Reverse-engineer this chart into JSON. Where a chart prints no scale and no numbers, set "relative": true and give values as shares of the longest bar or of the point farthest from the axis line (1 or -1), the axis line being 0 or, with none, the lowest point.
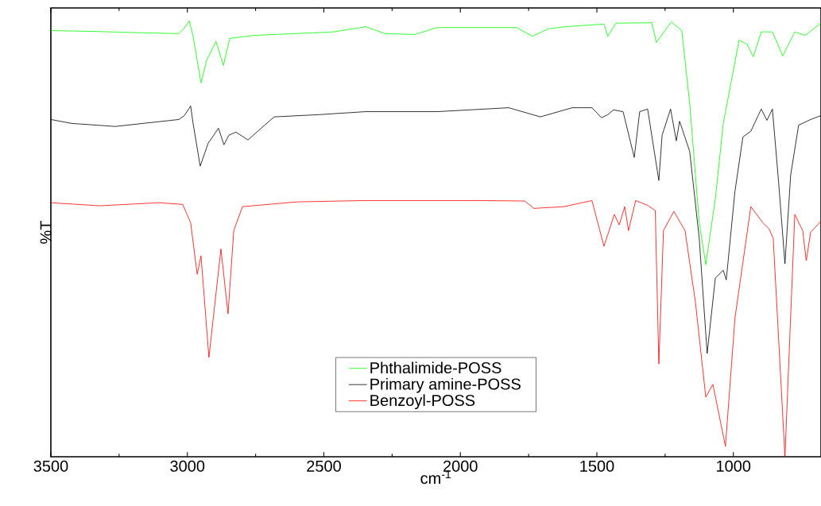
{
  "chart_data": {
    "type": "line",
    "relative": true,
    "xlabel": "cm$^{-1}$",
    "ylabel": "%T",
    "xlim": [
      3500,
      679
    ],
    "xticks": [
      3500,
      3000,
      2500,
      2000,
      1500,
      1000
    ],
    "legend": "bottom",
    "grid": false,
    "marker": "none",
    "line_style": "solid",
    "series": [
      {
        "name": "Phthalimide-POSS",
        "color": "#00ff00",
        "x": [
          3500,
          3337,
          3162,
          3031,
          3011,
          2993,
          2979,
          2950,
          2929,
          2895,
          2868,
          2845,
          2755,
          2464,
          2347,
          2275,
          2167,
          2085,
          1794,
          1736,
          1678,
          1614,
          1474,
          1460,
          1430,
          1299,
          1282,
          1227,
          1189,
          1160,
          1125,
          1101,
          1066,
          1037,
          979,
          950,
          927,
          898,
          857,
          819,
          775,
          737,
          679
        ],
        "values": [
          0.978,
          0.976,
          0.973,
          0.971,
          0.984,
          1.0,
          0.965,
          0.858,
          0.911,
          0.953,
          0.898,
          0.96,
          0.967,
          0.975,
          0.987,
          0.971,
          0.969,
          0.985,
          0.985,
          0.965,
          0.982,
          0.987,
          0.993,
          0.965,
          0.995,
          0.996,
          0.951,
          0.998,
          0.978,
          0.811,
          0.537,
          0.441,
          0.592,
          0.765,
          0.956,
          0.947,
          0.918,
          0.975,
          0.975,
          0.92,
          0.975,
          0.967,
          0.995
        ]
      },
      {
        "name": "Primary amine-POSS",
        "color": "#000000",
        "x": [
          3500,
          3424,
          3264,
          3104,
          3031,
          3011,
          2988,
          2979,
          2953,
          2924,
          2886,
          2866,
          2848,
          2822,
          2778,
          2726,
          2682,
          2522,
          2347,
          2085,
          1823,
          1707,
          1590,
          1518,
          1483,
          1460,
          1439,
          1404,
          1363,
          1343,
          1314,
          1273,
          1261,
          1230,
          1209,
          1197,
          1160,
          1125,
          1096,
          1066,
          1037,
          1026,
          994,
          965,
          936,
          898,
          877,
          857,
          834,
          811,
          790,
          761,
          717,
          679
        ],
        "values": [
          0.774,
          0.765,
          0.758,
          0.769,
          0.774,
          0.783,
          0.805,
          0.765,
          0.667,
          0.719,
          0.754,
          0.716,
          0.738,
          0.745,
          0.727,
          0.756,
          0.78,
          0.785,
          0.792,
          0.792,
          0.801,
          0.78,
          0.801,
          0.801,
          0.778,
          0.785,
          0.796,
          0.792,
          0.687,
          0.792,
          0.798,
          0.634,
          0.738,
          0.798,
          0.725,
          0.77,
          0.701,
          0.501,
          0.237,
          0.41,
          0.428,
          0.406,
          0.61,
          0.734,
          0.747,
          0.798,
          0.772,
          0.798,
          0.628,
          0.443,
          0.647,
          0.761,
          0.774,
          0.783
        ]
      },
      {
        "name": "Benzoyl-POSS",
        "color": "#ff0000",
        "x": [
          3500,
          3322,
          3104,
          3017,
          2988,
          2964,
          2950,
          2921,
          2877,
          2851,
          2830,
          2798,
          2595,
          2347,
          1940,
          1765,
          1730,
          1620,
          1518,
          1474,
          1436,
          1418,
          1398,
          1384,
          1358,
          1314,
          1286,
          1273,
          1256,
          1218,
          1177,
          1139,
          1101,
          1075,
          1029,
          994,
          936,
          892,
          869,
          854,
          811,
          775,
          746,
          733,
          717,
          679
        ],
        "values": [
          0.583,
          0.576,
          0.583,
          0.579,
          0.537,
          0.419,
          0.461,
          0.228,
          0.477,
          0.328,
          0.519,
          0.574,
          0.585,
          0.588,
          0.588,
          0.587,
          0.57,
          0.574,
          0.588,
          0.483,
          0.556,
          0.532,
          0.574,
          0.519,
          0.588,
          0.577,
          0.565,
          0.213,
          0.519,
          0.563,
          0.519,
          0.355,
          0.137,
          0.166,
          0.024,
          0.319,
          0.574,
          0.537,
          0.523,
          0.501,
          0.0,
          0.556,
          0.519,
          0.45,
          0.515,
          0.541
        ]
      }
    ]
  }
}
